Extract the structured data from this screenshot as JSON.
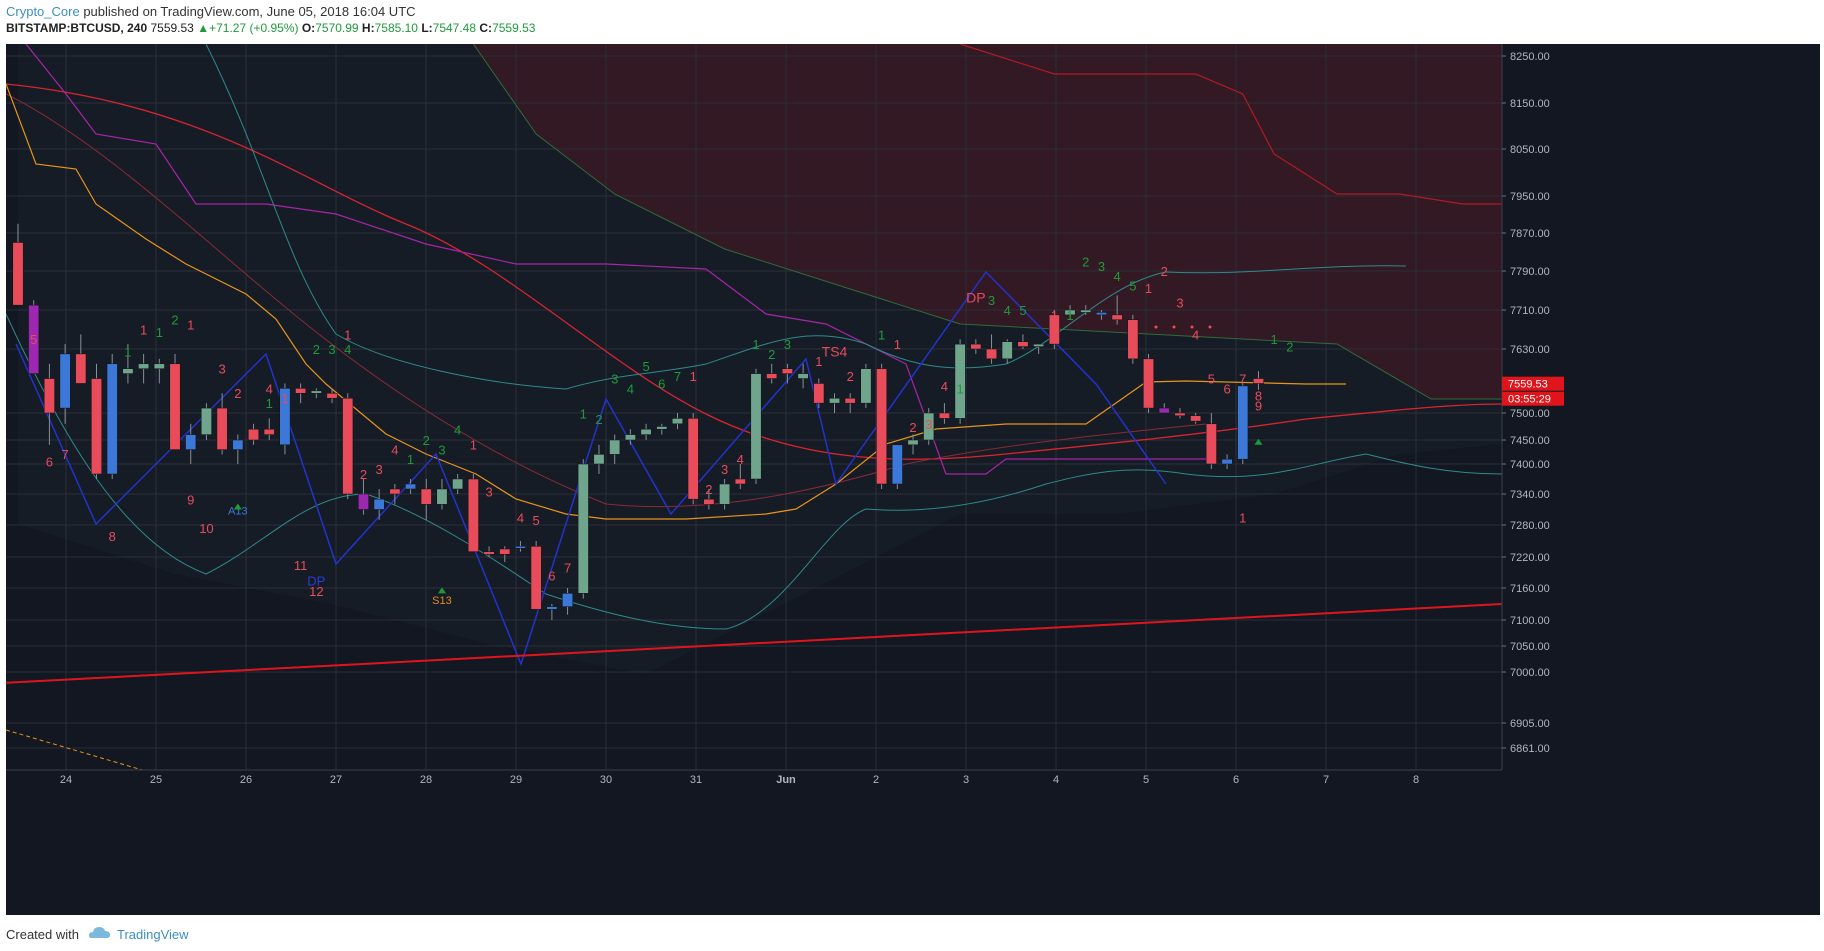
{
  "header": {
    "author": "Crypto_Core",
    "published": "published on TradingView.com, June 05, 2018 16:04 UTC",
    "symbol": "BITSTAMP:BTCUSD, 240",
    "last": "7559.53",
    "change": "+71.27 (+0.95%)",
    "open_label": "O:",
    "open": "7570.99",
    "high_label": "H:",
    "high": "7585.10",
    "low_label": "L:",
    "low": "7547.48",
    "close_label": "C:",
    "close": "7559.53"
  },
  "footer": {
    "created_with": "Created with",
    "brand": "TradingView"
  },
  "colors": {
    "bg": "#131722",
    "grid": "#2a2e39",
    "up": "#6ea58c",
    "down": "#e84c5a",
    "blue": "#3c78d8",
    "purple": "#9c27b0",
    "cloud": "#3a1a22",
    "trend": "#e0151c"
  },
  "chart_data": {
    "type": "candlestick",
    "price_axis_ticks": [
      8250,
      8150,
      8050,
      7950,
      7870,
      7790,
      7710,
      7630,
      7500,
      7450,
      7400,
      7340,
      7280,
      7220,
      7160,
      7100,
      7050,
      7000,
      6905,
      6861
    ],
    "price_axis_labels": [
      "8250.00",
      "8150.00",
      "8050.00",
      "7950.00",
      "7870.00",
      "7790.00",
      "7710.00",
      "7630.00",
      "7500.00",
      "7450.00",
      "7400.00",
      "7340.00",
      "7280.00",
      "7220.00",
      "7160.00",
      "7100.00",
      "7050.00",
      "7000.00",
      "6905.00",
      "6861.00"
    ],
    "time_axis_labels": [
      "24",
      "25",
      "26",
      "27",
      "28",
      "29",
      "30",
      "31",
      "Jun",
      "2",
      "3",
      "4",
      "5",
      "6",
      "7",
      "8"
    ],
    "current_price_label": "7559.53",
    "countdown_label": "03:55:29",
    "ylim": [
      6820,
      8290
    ],
    "candles": [
      [
        7850,
        7890,
        7720,
        7720
      ],
      [
        7720,
        7730,
        7580,
        7580
      ],
      [
        7570,
        7600,
        7440,
        7500
      ],
      [
        7510,
        7640,
        7480,
        7620
      ],
      [
        7620,
        7660,
        7560,
        7560
      ],
      [
        7570,
        7600,
        7370,
        7380
      ],
      [
        7380,
        7620,
        7370,
        7600
      ],
      [
        7580,
        7640,
        7560,
        7590
      ],
      [
        7590,
        7620,
        7560,
        7600
      ],
      [
        7600,
        7610,
        7560,
        7590
      ],
      [
        7600,
        7620,
        7430,
        7430
      ],
      [
        7430,
        7480,
        7400,
        7460
      ],
      [
        7460,
        7520,
        7450,
        7510
      ],
      [
        7510,
        7540,
        7420,
        7430
      ],
      [
        7430,
        7460,
        7400,
        7450
      ],
      [
        7450,
        7480,
        7440,
        7470
      ],
      [
        7470,
        7490,
        7450,
        7460
      ],
      [
        7440,
        7560,
        7420,
        7550
      ],
      [
        7550,
        7560,
        7520,
        7540
      ],
      [
        7540,
        7550,
        7530,
        7545
      ],
      [
        7540,
        7550,
        7520,
        7530
      ],
      [
        7530,
        7540,
        7330,
        7340
      ],
      [
        7340,
        7370,
        7300,
        7310
      ],
      [
        7310,
        7350,
        7290,
        7330
      ],
      [
        7340,
        7360,
        7320,
        7350
      ],
      [
        7360,
        7370,
        7340,
        7350
      ],
      [
        7350,
        7370,
        7290,
        7320
      ],
      [
        7320,
        7370,
        7310,
        7350
      ],
      [
        7350,
        7380,
        7340,
        7370
      ],
      [
        7370,
        7380,
        7230,
        7230
      ],
      [
        7230,
        7240,
        7220,
        7225
      ],
      [
        7225,
        7240,
        7210,
        7235
      ],
      [
        7240,
        7250,
        7230,
        7238
      ],
      [
        7240,
        7250,
        7120,
        7120
      ],
      [
        7120,
        7130,
        7100,
        7125
      ],
      [
        7125,
        7160,
        7110,
        7150
      ],
      [
        7150,
        7410,
        7140,
        7400
      ],
      [
        7400,
        7440,
        7380,
        7420
      ],
      [
        7420,
        7460,
        7400,
        7450
      ],
      [
        7450,
        7470,
        7440,
        7460
      ],
      [
        7460,
        7480,
        7450,
        7470
      ],
      [
        7470,
        7480,
        7460,
        7475
      ],
      [
        7480,
        7500,
        7470,
        7490
      ],
      [
        7490,
        7500,
        7320,
        7330
      ],
      [
        7330,
        7350,
        7310,
        7320
      ],
      [
        7320,
        7370,
        7310,
        7360
      ],
      [
        7360,
        7400,
        7350,
        7370
      ],
      [
        7370,
        7590,
        7360,
        7580
      ],
      [
        7580,
        7600,
        7560,
        7570
      ],
      [
        7580,
        7600,
        7560,
        7590
      ],
      [
        7580,
        7600,
        7550,
        7570
      ],
      [
        7560,
        7570,
        7510,
        7520
      ],
      [
        7520,
        7540,
        7500,
        7530
      ],
      [
        7530,
        7540,
        7500,
        7520
      ],
      [
        7520,
        7600,
        7510,
        7590
      ],
      [
        7590,
        7600,
        7350,
        7360
      ],
      [
        7360,
        7440,
        7350,
        7440
      ],
      [
        7440,
        7460,
        7420,
        7450
      ],
      [
        7450,
        7510,
        7440,
        7500
      ],
      [
        7500,
        7520,
        7480,
        7490
      ],
      [
        7490,
        7650,
        7480,
        7640
      ],
      [
        7640,
        7650,
        7620,
        7630
      ],
      [
        7630,
        7660,
        7600,
        7610
      ],
      [
        7610,
        7650,
        7600,
        7645
      ],
      [
        7645,
        7660,
        7630,
        7635
      ],
      [
        7635,
        7640,
        7620,
        7640
      ],
      [
        7640,
        7710,
        7630,
        7700
      ],
      [
        7700,
        7720,
        7690,
        7710
      ],
      [
        7710,
        7720,
        7700,
        7705
      ],
      [
        7705,
        7710,
        7690,
        7700
      ],
      [
        7700,
        7740,
        7680,
        7690
      ],
      [
        7690,
        7700,
        7600,
        7610
      ],
      [
        7610,
        7620,
        7500,
        7510
      ],
      [
        7510,
        7520,
        7500,
        7500
      ],
      [
        7500,
        7510,
        7490,
        7495
      ],
      [
        7495,
        7500,
        7480,
        7485
      ],
      [
        7480,
        7500,
        7390,
        7400
      ],
      [
        7400,
        7420,
        7390,
        7410
      ],
      [
        7410,
        7560,
        7400,
        7555
      ],
      [
        7570,
        7585,
        7547,
        7560
      ]
    ],
    "candle_colors": [
      "down",
      "purple",
      "down",
      "blue",
      "down",
      "down",
      "blue",
      "up",
      "up",
      "up",
      "down",
      "blue",
      "up",
      "down",
      "blue",
      "down",
      "down",
      "blue",
      "down",
      "up",
      "down",
      "down",
      "purple",
      "blue",
      "down",
      "blue",
      "down",
      "up",
      "up",
      "down",
      "down",
      "down",
      "blue",
      "down",
      "blue",
      "blue",
      "up",
      "up",
      "up",
      "up",
      "up",
      "up",
      "up",
      "down",
      "down",
      "up",
      "down",
      "up",
      "down",
      "down",
      "up",
      "down",
      "up",
      "down",
      "up",
      "down",
      "blue",
      "up",
      "up",
      "down",
      "up",
      "down",
      "down",
      "up",
      "down",
      "up",
      "down",
      "up",
      "up",
      "blue",
      "down",
      "down",
      "down",
      "purple",
      "down",
      "down",
      "down",
      "blue",
      "blue",
      "down"
    ],
    "trendline": {
      "from": [
        0,
        6980
      ],
      "to": [
        1,
        7130
      ]
    },
    "td_labels": [
      {
        "t": "5",
        "i": 1,
        "p": 7640,
        "c": "#e84c5a"
      },
      {
        "t": "6",
        "i": 2,
        "p": 7395,
        "c": "#e84c5a"
      },
      {
        "t": "7",
        "i": 3,
        "p": 7410,
        "c": "#e84c5a"
      },
      {
        "t": "8",
        "i": 6,
        "p": 7250,
        "c": "#e84c5a"
      },
      {
        "t": "9",
        "i": 11,
        "p": 7320,
        "c": "#e84c5a"
      },
      {
        "t": "10",
        "i": 12,
        "p": 7265,
        "c": "#e84c5a"
      },
      {
        "t": "1",
        "i": 8,
        "p": 7660,
        "c": "#e84c5a"
      },
      {
        "t": "1",
        "i": 7,
        "p": 7615,
        "c": "#1f9a3a"
      },
      {
        "t": "1",
        "i": 9,
        "p": 7655,
        "c": "#1f9a3a"
      },
      {
        "t": "2",
        "i": 10,
        "p": 7680,
        "c": "#1f9a3a"
      },
      {
        "t": "1",
        "i": 11,
        "p": 7670,
        "c": "#e84c5a"
      },
      {
        "t": "3",
        "i": 13,
        "p": 7580,
        "c": "#e84c5a"
      },
      {
        "t": "2",
        "i": 14,
        "p": 7530,
        "c": "#e84c5a"
      },
      {
        "t": "4",
        "i": 16,
        "p": 7540,
        "c": "#e84c5a"
      },
      {
        "t": "1",
        "i": 16,
        "p": 7510,
        "c": "#1f9a3a"
      },
      {
        "t": "1",
        "i": 17,
        "p": 7520,
        "c": "#e84c5a"
      },
      {
        "t": "2",
        "i": 19,
        "p": 7620,
        "c": "#1f9a3a"
      },
      {
        "t": "3",
        "i": 20,
        "p": 7620,
        "c": "#1f9a3a"
      },
      {
        "t": "4",
        "i": 21,
        "p": 7620,
        "c": "#1f9a3a"
      },
      {
        "t": "1",
        "i": 21,
        "p": 7650,
        "c": "#e84c5a"
      },
      {
        "t": "2",
        "i": 22,
        "p": 7370,
        "c": "#e84c5a"
      },
      {
        "t": "3",
        "i": 23,
        "p": 7380,
        "c": "#e84c5a"
      },
      {
        "t": "4",
        "i": 24,
        "p": 7420,
        "c": "#e84c5a"
      },
      {
        "t": "1",
        "i": 25,
        "p": 7400,
        "c": "#1f9a3a"
      },
      {
        "t": "2",
        "i": 26,
        "p": 7440,
        "c": "#1f9a3a"
      },
      {
        "t": "3",
        "i": 27,
        "p": 7420,
        "c": "#1f9a3a"
      },
      {
        "t": "4",
        "i": 28,
        "p": 7460,
        "c": "#1f9a3a"
      },
      {
        "t": "1",
        "i": 29,
        "p": 7430,
        "c": "#e84c5a"
      },
      {
        "t": "2",
        "i": 29,
        "p": 7240,
        "c": "#e84c5a"
      },
      {
        "t": "3",
        "i": 30,
        "p": 7335,
        "c": "#e84c5a"
      },
      {
        "t": "4",
        "i": 32,
        "p": 7285,
        "c": "#e84c5a"
      },
      {
        "t": "5",
        "i": 33,
        "p": 7280,
        "c": "#e84c5a"
      },
      {
        "t": "6",
        "i": 34,
        "p": 7175,
        "c": "#e84c5a"
      },
      {
        "t": "7",
        "i": 35,
        "p": 7190,
        "c": "#e84c5a"
      },
      {
        "t": "11",
        "i": 18,
        "p": 7195,
        "c": "#e84c5a"
      },
      {
        "t": "12",
        "i": 19,
        "p": 7145,
        "c": "#e84c5a"
      },
      {
        "t": "1",
        "i": 36,
        "p": 7490,
        "c": "#1f9a3a"
      },
      {
        "t": "2",
        "i": 37,
        "p": 7480,
        "c": "#1f9a3a"
      },
      {
        "t": "3",
        "i": 38,
        "p": 7560,
        "c": "#1f9a3a"
      },
      {
        "t": "4",
        "i": 39,
        "p": 7540,
        "c": "#1f9a3a"
      },
      {
        "t": "5",
        "i": 40,
        "p": 7585,
        "c": "#1f9a3a"
      },
      {
        "t": "6",
        "i": 41,
        "p": 7550,
        "c": "#1f9a3a"
      },
      {
        "t": "7",
        "i": 42,
        "p": 7565,
        "c": "#1f9a3a"
      },
      {
        "t": "1",
        "i": 43,
        "p": 7565,
        "c": "#e84c5a"
      },
      {
        "t": "2",
        "i": 44,
        "p": 7340,
        "c": "#e84c5a"
      },
      {
        "t": "3",
        "i": 45,
        "p": 7380,
        "c": "#e84c5a"
      },
      {
        "t": "4",
        "i": 46,
        "p": 7400,
        "c": "#e84c5a"
      },
      {
        "t": "1",
        "i": 47,
        "p": 7630,
        "c": "#1f9a3a"
      },
      {
        "t": "2",
        "i": 48,
        "p": 7610,
        "c": "#1f9a3a"
      },
      {
        "t": "3",
        "i": 49,
        "p": 7630,
        "c": "#1f9a3a"
      },
      {
        "t": "1",
        "i": 51,
        "p": 7595,
        "c": "#e84c5a"
      },
      {
        "t": "2",
        "i": 53,
        "p": 7565,
        "c": "#e84c5a"
      },
      {
        "t": "1",
        "i": 55,
        "p": 7650,
        "c": "#1f9a3a"
      },
      {
        "t": "1",
        "i": 56,
        "p": 7630,
        "c": "#e84c5a"
      },
      {
        "t": "2",
        "i": 57,
        "p": 7465,
        "c": "#e84c5a"
      },
      {
        "t": "3",
        "i": 58,
        "p": 7470,
        "c": "#e84c5a"
      },
      {
        "t": "4",
        "i": 59,
        "p": 7545,
        "c": "#e84c5a"
      },
      {
        "t": "1",
        "i": 60,
        "p": 7540,
        "c": "#1f9a3a"
      },
      {
        "t": "3",
        "i": 62,
        "p": 7720,
        "c": "#1f9a3a"
      },
      {
        "t": "4",
        "i": 63,
        "p": 7700,
        "c": "#1f9a3a"
      },
      {
        "t": "5",
        "i": 64,
        "p": 7700,
        "c": "#1f9a3a"
      },
      {
        "t": "1",
        "i": 66,
        "p": 7690,
        "c": "#e84c5a"
      },
      {
        "t": "1",
        "i": 67,
        "p": 7690,
        "c": "#1f9a3a"
      },
      {
        "t": "2",
        "i": 68,
        "p": 7800,
        "c": "#1f9a3a"
      },
      {
        "t": "3",
        "i": 69,
        "p": 7790,
        "c": "#1f9a3a"
      },
      {
        "t": "4",
        "i": 70,
        "p": 7770,
        "c": "#1f9a3a"
      },
      {
        "t": "5",
        "i": 71,
        "p": 7750,
        "c": "#1f9a3a"
      },
      {
        "t": "1",
        "i": 72,
        "p": 7745,
        "c": "#e84c5a"
      },
      {
        "t": "2",
        "i": 73,
        "p": 7780,
        "c": "#e84c5a"
      },
      {
        "t": "3",
        "i": 74,
        "p": 7715,
        "c": "#e84c5a"
      },
      {
        "t": "4",
        "i": 75,
        "p": 7650,
        "c": "#e84c5a"
      },
      {
        "t": "5",
        "i": 76,
        "p": 7560,
        "c": "#e84c5a"
      },
      {
        "t": "6",
        "i": 77,
        "p": 7540,
        "c": "#e84c5a"
      },
      {
        "t": "7",
        "i": 78,
        "p": 7560,
        "c": "#e84c5a"
      },
      {
        "t": "8",
        "i": 79,
        "p": 7525,
        "c": "#e84c5a"
      },
      {
        "t": "1",
        "i": 80,
        "p": 7640,
        "c": "#1f9a3a"
      },
      {
        "t": "2",
        "i": 81,
        "p": 7625,
        "c": "#1f9a3a"
      },
      {
        "t": "1",
        "i": 78,
        "p": 7285,
        "c": "#e84c5a"
      },
      {
        "t": "9",
        "i": 79,
        "p": 7505,
        "c": "#e84c5a"
      }
    ],
    "special_labels": [
      {
        "t": "TS4",
        "i": 52,
        "p": 7615,
        "c": "#e84c5a",
        "size": 14
      },
      {
        "t": "DP",
        "i": 61,
        "p": 7725,
        "c": "#e84c5a",
        "size": 14
      },
      {
        "t": "DP",
        "i": 19,
        "p": 7165,
        "c": "#2a3ad6",
        "size": 13
      },
      {
        "t": "A13",
        "i": 14,
        "p": 7300,
        "c": "#3c78d8",
        "size": 11
      },
      {
        "t": "S13",
        "i": 27,
        "p": 7130,
        "c": "#e88b1a",
        "size": 11
      }
    ]
  }
}
